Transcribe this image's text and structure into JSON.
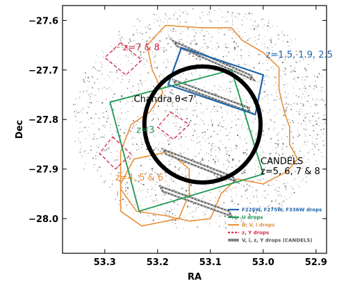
{
  "chart_data": {
    "type": "scatter",
    "xlabel": "RA",
    "ylabel": "Dec",
    "xlim": [
      53.38,
      52.88
    ],
    "ylim": [
      -28.07,
      -27.57
    ],
    "x_ticks": [
      53.3,
      53.2,
      53.1,
      53.0,
      52.9
    ],
    "x_tick_labels": [
      "53.3",
      "53.2",
      "53.1",
      "53.0",
      "52.9"
    ],
    "y_ticks": [
      -27.6,
      -27.7,
      -27.8,
      -27.9,
      -28.0
    ],
    "y_tick_labels": [
      "−27.6",
      "−27.7",
      "−27.8",
      "−27.9",
      "−28.0"
    ],
    "colors": {
      "blue": "#2166ac",
      "green": "#1a9850",
      "orange": "#e8903a",
      "red": "#d6304e",
      "gray": "#555555",
      "circle": "#000000"
    },
    "annotations": [
      {
        "text": "z=7 & 8",
        "x": 53.265,
        "y": -27.66,
        "color": "red"
      },
      {
        "text": "z=1.5, 1.9, 2.5",
        "x": 52.995,
        "y": -27.675,
        "color": "blue"
      },
      {
        "text": "Chandra θ<7'",
        "x": 53.245,
        "y": -27.765,
        "color": "circle"
      },
      {
        "text": "z=3",
        "x": 53.24,
        "y": -27.827,
        "color": "green"
      },
      {
        "text": "CANDELS",
        "x": 53.005,
        "y": -27.89,
        "color": "circle"
      },
      {
        "text": "z=5, 6, 7 & 8",
        "x": 53.005,
        "y": -27.91,
        "color": "circle"
      },
      {
        "text": "z=4, 5 & 6",
        "x": 53.28,
        "y": -27.923,
        "color": "orange"
      }
    ],
    "legend": {
      "position": "bottom-right",
      "items": [
        {
          "label": "F225W, F275W, F336W drops",
          "color": "blue",
          "style": "solid"
        },
        {
          "label": "U drops",
          "color": "green",
          "style": "solid"
        },
        {
          "label": "B, V, i drops",
          "color": "orange",
          "style": "solid"
        },
        {
          "label": "z, Y drops",
          "color": "red",
          "style": "dashed"
        },
        {
          "label": "V, i, z, Y drops (CANDELS)",
          "color": "gray",
          "style": "double"
        }
      ]
    },
    "chandra_circle": {
      "center_ra": 53.115,
      "center_dec": -27.81,
      "radius_deg": 0.11
    },
    "regions": {
      "blue": [
        [
          53.155,
          -27.655
        ],
        [
          53.0,
          -27.71
        ],
        [
          53.015,
          -27.79
        ],
        [
          53.18,
          -27.73
        ]
      ],
      "green": [
        [
          53.06,
          -27.7
        ],
        [
          53.0,
          -27.91
        ],
        [
          53.235,
          -27.985
        ],
        [
          53.29,
          -27.765
        ]
      ],
      "red_dashed": [
        [
          [
            53.27,
            -27.645
          ],
          [
            53.23,
            -27.68
          ],
          [
            53.26,
            -27.71
          ],
          [
            53.3,
            -27.675
          ]
        ],
        [
          [
            53.175,
            -27.785
          ],
          [
            53.14,
            -27.81
          ],
          [
            53.17,
            -27.84
          ],
          [
            53.2,
            -27.815
          ]
        ],
        [
          [
            53.285,
            -27.835
          ],
          [
            53.25,
            -27.87
          ],
          [
            53.28,
            -27.9
          ],
          [
            53.31,
            -27.868
          ]
        ]
      ],
      "gray_strips": [
        [
          [
            53.17,
            -27.642
          ],
          [
            53.025,
            -27.71
          ],
          [
            53.018,
            -27.72
          ],
          [
            53.163,
            -27.652
          ]
        ],
        [
          [
            53.17,
            -27.72
          ],
          [
            53.03,
            -27.775
          ],
          [
            53.025,
            -27.785
          ],
          [
            53.165,
            -27.73
          ]
        ],
        [
          [
            53.19,
            -27.86
          ],
          [
            53.058,
            -27.915
          ],
          [
            53.052,
            -27.925
          ],
          [
            53.184,
            -27.87
          ]
        ],
        [
          [
            53.195,
            -27.935
          ],
          [
            53.065,
            -27.985
          ],
          [
            53.06,
            -27.995
          ],
          [
            53.19,
            -27.945
          ]
        ]
      ],
      "orange": [
        [
          [
            53.185,
            -27.61
          ],
          [
            53.115,
            -27.615
          ],
          [
            53.06,
            -27.615
          ],
          [
            53.04,
            -27.64
          ],
          [
            53.0,
            -27.665
          ],
          [
            52.97,
            -27.695
          ],
          [
            52.97,
            -27.74
          ],
          [
            52.96,
            -27.785
          ],
          [
            52.95,
            -27.815
          ],
          [
            52.95,
            -27.85
          ],
          [
            52.935,
            -27.88
          ],
          [
            52.955,
            -27.905
          ],
          [
            53.0,
            -27.93
          ],
          [
            53.05,
            -27.92
          ],
          [
            53.08,
            -27.95
          ],
          [
            53.1,
            -28.0
          ],
          [
            53.14,
            -28.005
          ],
          [
            53.18,
            -27.995
          ],
          [
            53.24,
            -27.985
          ],
          [
            53.27,
            -27.94
          ],
          [
            53.27,
            -27.865
          ],
          [
            53.25,
            -27.81
          ],
          [
            53.215,
            -27.785
          ],
          [
            53.19,
            -27.745
          ],
          [
            53.21,
            -27.7
          ],
          [
            53.22,
            -27.65
          ]
        ],
        [
          [
            53.245,
            -27.88
          ],
          [
            53.18,
            -27.865
          ],
          [
            53.14,
            -27.9
          ],
          [
            53.14,
            -27.95
          ],
          [
            53.16,
            -28.0
          ],
          [
            53.23,
            -28.015
          ],
          [
            53.27,
            -27.985
          ],
          [
            53.27,
            -27.93
          ]
        ]
      ]
    },
    "background": "grayscale catalog source density field (GOODS-S)"
  }
}
